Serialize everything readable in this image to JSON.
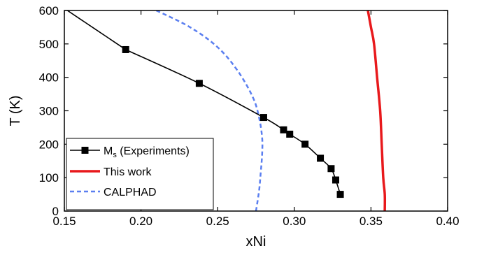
{
  "chart_data": {
    "type": "line",
    "xlabel": "xNi",
    "ylabel": "T (K)",
    "xlim": [
      0.15,
      0.4
    ],
    "ylim": [
      0,
      600
    ],
    "x_ticks": [
      "0.15",
      "0.20",
      "0.25",
      "0.30",
      "0.35",
      "0.40"
    ],
    "y_ticks": [
      "0",
      "100",
      "200",
      "300",
      "400",
      "500",
      "600"
    ],
    "grid": false,
    "legend_position": "bottom-left",
    "series": [
      {
        "name": "Ms (Experiments)",
        "legend_main": "M",
        "legend_sub": "s",
        "legend_rest": " (Experiments)",
        "color": "#000000",
        "style": "solid-with-square-markers",
        "points": [
          {
            "x": 0.19,
            "y": 483
          },
          {
            "x": 0.238,
            "y": 382
          },
          {
            "x": 0.28,
            "y": 280
          },
          {
            "x": 0.293,
            "y": 243
          },
          {
            "x": 0.297,
            "y": 230
          },
          {
            "x": 0.307,
            "y": 200
          },
          {
            "x": 0.317,
            "y": 158
          },
          {
            "x": 0.324,
            "y": 127
          },
          {
            "x": 0.327,
            "y": 93
          },
          {
            "x": 0.33,
            "y": 50
          }
        ],
        "curve_extension": [
          {
            "x": 0.152,
            "y": 600
          },
          {
            "x": 0.165,
            "y": 560
          },
          {
            "x": 0.178,
            "y": 520
          },
          {
            "x": 0.19,
            "y": 483
          }
        ]
      },
      {
        "name": "This work",
        "color": "#e8191c",
        "style": "solid-thick",
        "points": [
          {
            "x": 0.348,
            "y": 600
          },
          {
            "x": 0.35,
            "y": 550
          },
          {
            "x": 0.352,
            "y": 500
          },
          {
            "x": 0.354,
            "y": 400
          },
          {
            "x": 0.356,
            "y": 300
          },
          {
            "x": 0.357,
            "y": 200
          },
          {
            "x": 0.358,
            "y": 100
          },
          {
            "x": 0.359,
            "y": 50
          },
          {
            "x": 0.359,
            "y": 0
          }
        ]
      },
      {
        "name": "CALPHAD",
        "color": "#5b7ff0",
        "style": "dashed",
        "points": [
          {
            "x": 0.21,
            "y": 600
          },
          {
            "x": 0.232,
            "y": 550
          },
          {
            "x": 0.25,
            "y": 490
          },
          {
            "x": 0.263,
            "y": 420
          },
          {
            "x": 0.273,
            "y": 340
          },
          {
            "x": 0.277,
            "y": 280
          },
          {
            "x": 0.279,
            "y": 220
          },
          {
            "x": 0.279,
            "y": 170
          },
          {
            "x": 0.278,
            "y": 110
          },
          {
            "x": 0.277,
            "y": 60
          },
          {
            "x": 0.275,
            "y": 0
          }
        ]
      }
    ]
  }
}
